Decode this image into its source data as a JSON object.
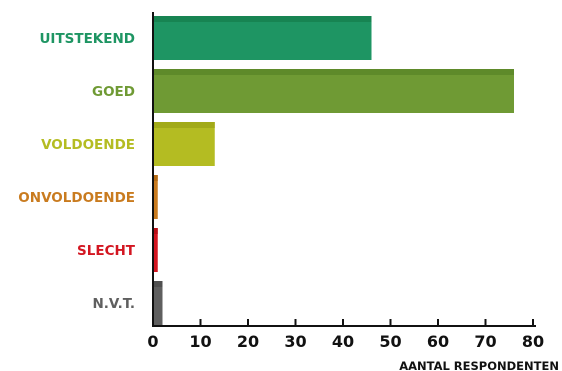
{
  "chart_data": {
    "type": "bar",
    "orientation": "horizontal",
    "categories": [
      "UITSTEKEND",
      "GOED",
      "VOLDOENDE",
      "ONVOLDOENDE",
      "SLECHT",
      "N.V.T."
    ],
    "values": [
      46,
      76,
      13,
      1,
      1,
      2
    ],
    "colors": [
      "#1e9563",
      "#6f9a34",
      "#b4bc22",
      "#c97b1f",
      "#d31621",
      "#5f5f5f"
    ],
    "top_colors": [
      "#178452",
      "#5e8a2a",
      "#a2aa18",
      "#b56b14",
      "#b80f18",
      "#505050"
    ],
    "xlabel": "AANTAL RESPONDENTEN",
    "xlim": [
      0,
      80
    ],
    "xticks": [
      "0",
      "10",
      "20",
      "30",
      "40",
      "50",
      "60",
      "70",
      "80"
    ],
    "grid": false,
    "legend": "none"
  }
}
